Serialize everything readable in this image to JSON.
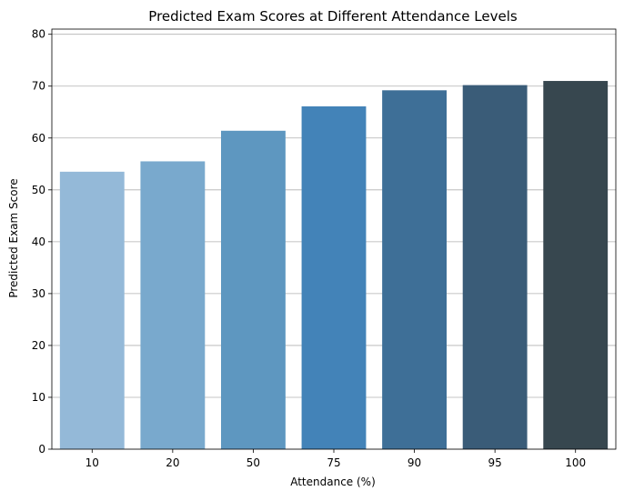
{
  "chart_data": {
    "type": "bar",
    "title": "Predicted Exam Scores at Different Attendance Levels",
    "xlabel": "Attendance (%)",
    "ylabel": "Predicted Exam Score",
    "categories": [
      "10",
      "20",
      "50",
      "75",
      "90",
      "95",
      "100"
    ],
    "values": [
      53.5,
      55.5,
      61.4,
      66.1,
      69.2,
      70.2,
      71.0
    ],
    "ylim": [
      0,
      81
    ],
    "yticks": [
      0,
      10,
      20,
      30,
      40,
      50,
      60,
      70,
      80
    ],
    "ytick_labels": [
      "0",
      "10",
      "20",
      "30",
      "40",
      "50",
      "60",
      "70",
      "80"
    ],
    "grid": "horizontal",
    "colors": [
      "#94b9d8",
      "#79a9cd",
      "#5e97c0",
      "#4383b8",
      "#3e6f97",
      "#3a5c78",
      "#37474f"
    ]
  }
}
